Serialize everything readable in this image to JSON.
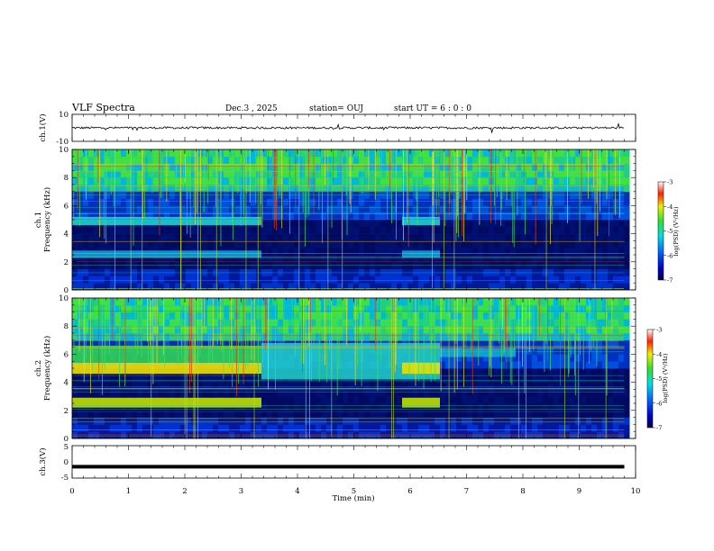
{
  "header": {
    "title": "VLF Spectra",
    "date": "Dec.3 , 2025",
    "station": "station= OUJ",
    "start_ut": "start UT =  6 : 0 : 0"
  },
  "chart_data": [
    {
      "type": "line",
      "name": "ch1-waveform",
      "ylabel": "ch.1(V)",
      "ylim": [
        -10,
        10
      ],
      "tick_labels": [
        "10",
        "-10"
      ],
      "xlim": [
        0,
        10
      ],
      "data_end_min": 9.8,
      "baseline": 0
    },
    {
      "type": "heatmap",
      "name": "ch1-spectrogram",
      "ylabel": "ch.1",
      "ylabel2": "Frequency  (kHz)",
      "ylim": [
        0,
        10
      ],
      "yticks": [
        "0",
        "2",
        "4",
        "6",
        "8",
        "10"
      ],
      "xlim": [
        0,
        10
      ],
      "data_end_min": 9.8,
      "colorbar": {
        "label": "log(PSD) (V²/Hz)",
        "range": [
          -7,
          -3
        ],
        "ticks": [
          "-3",
          "-4",
          "-5",
          "-6",
          "-7"
        ]
      }
    },
    {
      "type": "heatmap",
      "name": "ch2-spectrogram",
      "ylabel": "ch.2",
      "ylabel2": "Frequency  (kHz)",
      "ylim": [
        0,
        10
      ],
      "yticks": [
        "0",
        "2",
        "4",
        "6",
        "8",
        "10"
      ],
      "xlim": [
        0,
        10
      ],
      "data_end_min": 9.8,
      "colorbar": {
        "label": "log(PSD) (V²/Hz)",
        "range": [
          -7,
          -3
        ],
        "ticks": [
          "-3",
          "-4",
          "-5",
          "-6",
          "-7"
        ]
      }
    },
    {
      "type": "line",
      "name": "ch3-waveform",
      "ylabel": "ch.3(V)",
      "ylim": [
        -5,
        5
      ],
      "tick_labels": [
        "5",
        "0",
        "-5"
      ],
      "xlim": [
        0,
        10
      ],
      "data_end_min": 9.8,
      "baseline": -1.5
    }
  ],
  "x_axis": {
    "label": "Time  (min)",
    "ticks": [
      "0",
      "1",
      "2",
      "3",
      "4",
      "5",
      "6",
      "7",
      "8",
      "9",
      "10"
    ]
  }
}
